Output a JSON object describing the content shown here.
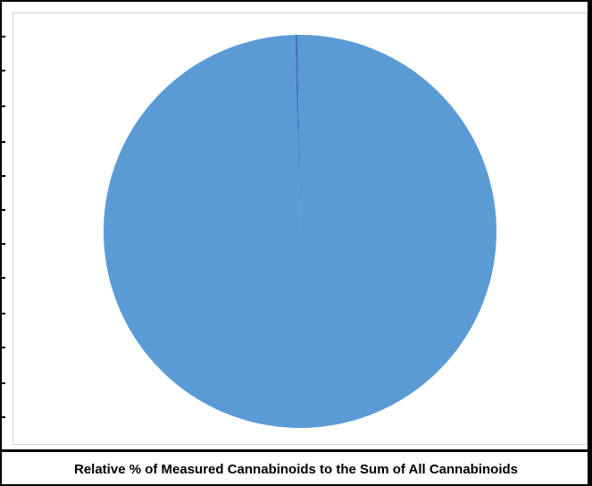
{
  "chart_data": {
    "type": "pie",
    "title": "",
    "slices": [
      {
        "value": 99.8,
        "color": "#5b9bd5"
      },
      {
        "value": 0.2,
        "color": "#4472c4"
      }
    ],
    "legend": "none"
  },
  "caption": "Relative % of Measured Cannabinoids to the Sum of All Cannabinoids"
}
